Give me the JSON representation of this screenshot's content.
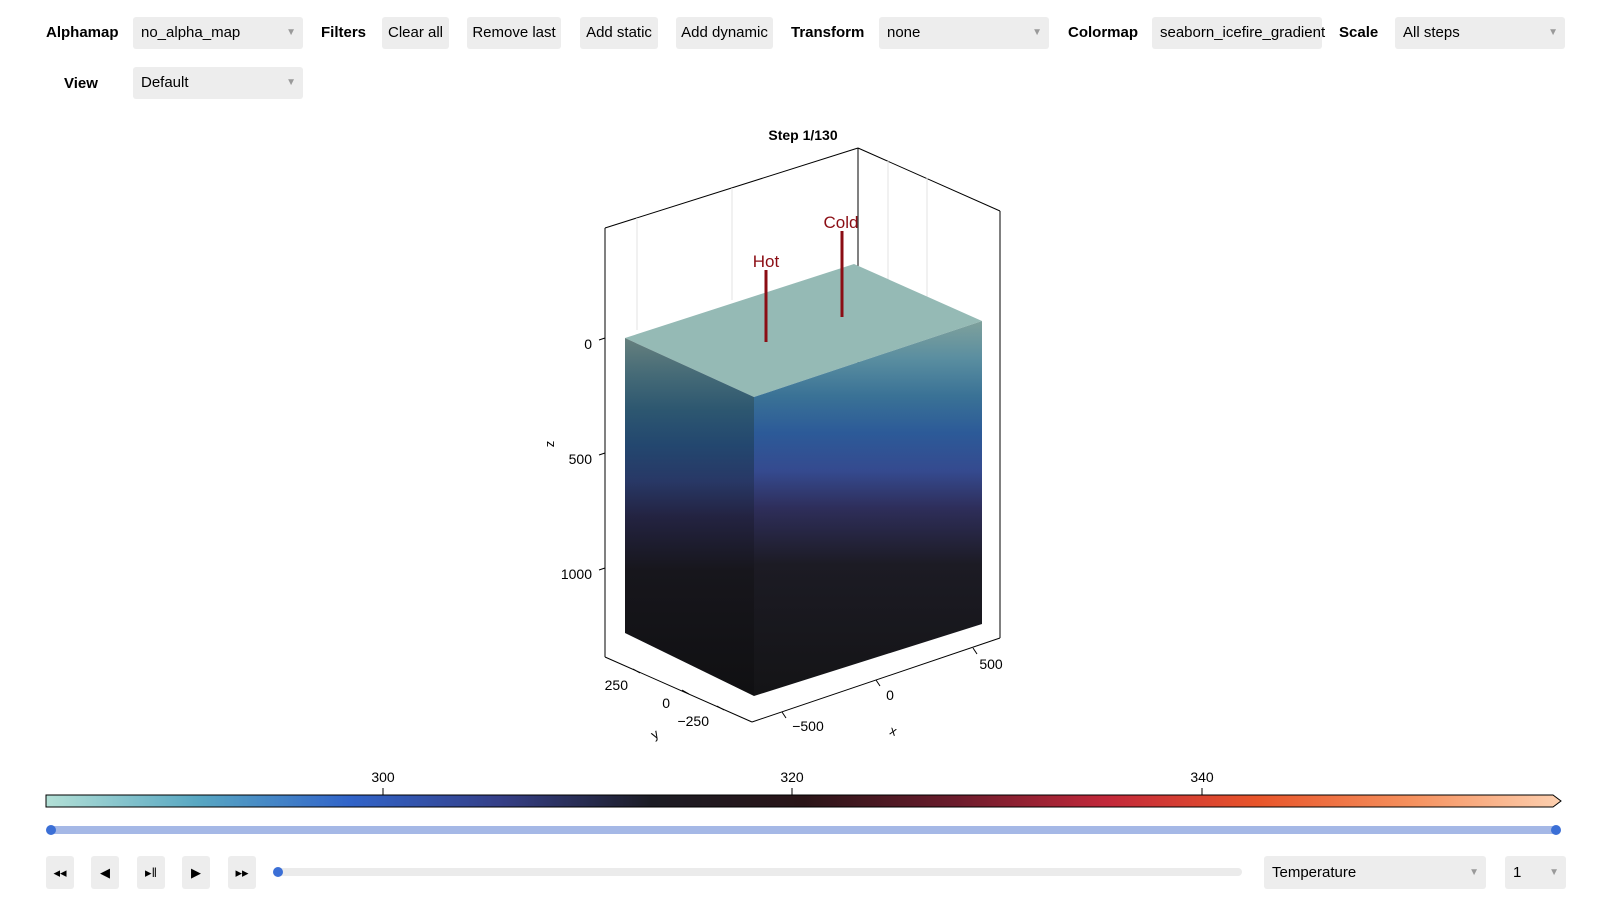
{
  "toolbar": {
    "alphamap_label": "Alphamap",
    "alphamap_value": "no_alpha_map",
    "filters_label": "Filters",
    "clear_all": "Clear all",
    "remove_last": "Remove last",
    "add_static": "Add static",
    "add_dynamic": "Add dynamic",
    "transform_label": "Transform",
    "transform_value": "none",
    "colormap_label": "Colormap",
    "colormap_value": "seaborn_icefire_gradient",
    "scale_label": "Scale",
    "scale_value": "All steps",
    "view_label": "View",
    "view_value": "Default"
  },
  "plot": {
    "title": "Step 1/130",
    "annotations": [
      "Hot",
      "Cold"
    ],
    "z_ticks": [
      "0",
      "500",
      "1000"
    ],
    "z_label": "z",
    "y_ticks": [
      "250",
      "0",
      "−250"
    ],
    "y_label": "y",
    "x_ticks": [
      "−500",
      "0",
      "500"
    ],
    "x_label": "x"
  },
  "colorbar": {
    "ticks": [
      "300",
      "320",
      "340"
    ],
    "colors": [
      "#b3e0d6",
      "#58a7c2",
      "#3164c9",
      "#353f87",
      "#1c1c24",
      "#2a1518",
      "#6b1c2c",
      "#c2283a",
      "#e8552a",
      "#f5905d",
      "#fdd0b0"
    ]
  },
  "range_slider": {
    "low": 0,
    "high": 1
  },
  "playback": {
    "step_fraction": 0,
    "variable": "Temperature",
    "step_value": "1",
    "icons": [
      "rewind-icon",
      "step-back-icon",
      "play-pause-icon",
      "play-icon",
      "fast-forward-icon"
    ]
  }
}
